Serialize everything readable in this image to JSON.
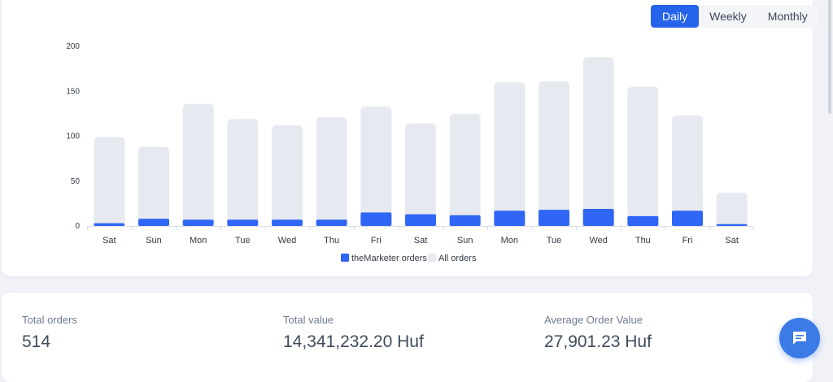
{
  "period_tabs": [
    "Daily",
    "Weekly",
    "Monthly"
  ],
  "active_tab": "Daily",
  "chart_data": {
    "type": "bar",
    "stacked": false,
    "overlapping": true,
    "categories": [
      "Sat",
      "Sun",
      "Mon",
      "Tue",
      "Wed",
      "Thu",
      "Fri",
      "Sat",
      "Sun",
      "Mon",
      "Tue",
      "Wed",
      "Thu",
      "Fri",
      "Sat"
    ],
    "series": [
      {
        "name": "theMarketer orders",
        "color": "#2f66f5",
        "values": [
          3,
          8,
          7,
          7,
          7,
          7,
          15,
          13,
          12,
          17,
          18,
          19,
          11,
          17,
          2
        ]
      },
      {
        "name": "All orders",
        "color": "#e6eaf0",
        "values": [
          99,
          88,
          136,
          119,
          112,
          121,
          133,
          114,
          125,
          160,
          161,
          188,
          155,
          123,
          37
        ]
      }
    ],
    "yticks": [
      0,
      50,
      100,
      150,
      200
    ],
    "ylim": [
      0,
      200
    ],
    "legend_position": "bottom"
  },
  "stats": {
    "total_orders_label": "Total orders",
    "total_orders_value": "514",
    "total_value_label": "Total value",
    "total_value_value": "14,341,232.20 Huf",
    "aov_label": "Average Order Value",
    "aov_value": "27,901.23 Huf"
  },
  "icons": {
    "chat": "chat-bubble-icon"
  }
}
